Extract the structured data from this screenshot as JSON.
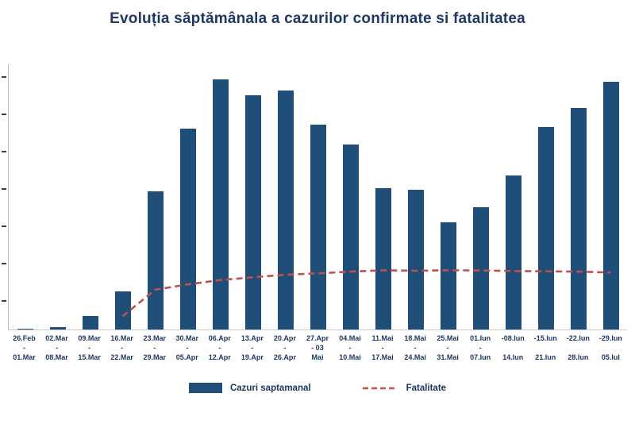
{
  "title": "Evoluția săptămânala a cazurilor confirmate si fatalitatea",
  "legend": {
    "bars": "Cazuri saptamanal",
    "line": "Fatalitate"
  },
  "colors": {
    "bar": "#1F4E79",
    "line": "#C0504D",
    "title": "#1F3864",
    "label": "#1F3864",
    "axis": "#C9C9C9"
  },
  "chart_data": {
    "type": "bar",
    "title": "Evoluția săptămânala a cazurilor confirmate si fatalitatea",
    "categories": [
      "26.Feb - 01.Mar",
      "02.Mar - 08.Mar",
      "09.Mar - 15.Mar",
      "16.Mar - 22.Mar",
      "23.Mar - 29.Mar",
      "30.Mar - 05.Apr",
      "06.Apr - 12.Apr",
      "13.Apr - 19.Apr",
      "20.Apr - 26.Apr",
      "27.Apr - 03.Mai",
      "04.Mai - 10.Mai",
      "11.Mai - 17.Mai",
      "18.Mai - 24.Mai",
      "25.Mai - 31.Mai",
      "01.Iun - 07.Iun",
      "08.Iun - 14.Iun",
      "15.Iun - 21.Iun",
      "22.Iun - 28.Iun",
      "29.Iun - 05.Iul"
    ],
    "categories_display": [
      [
        "26.Feb",
        "-",
        "01.Mar"
      ],
      [
        "02.Mar",
        "-",
        "08.Mar"
      ],
      [
        "09.Mar",
        "-",
        "15.Mar"
      ],
      [
        "16.Mar",
        "-",
        "22.Mar"
      ],
      [
        "23.Mar",
        "-",
        "29.Mar"
      ],
      [
        "30.Mar",
        "-",
        "05.Apr"
      ],
      [
        "06.Apr",
        "-",
        "12.Apr"
      ],
      [
        "13.Apr",
        "-",
        "19.Apr"
      ],
      [
        "20.Apr",
        "-",
        "26.Apr"
      ],
      [
        "27.Apr",
        "- 03",
        "Mai"
      ],
      [
        "04.Mai",
        "-",
        "10.Mai"
      ],
      [
        "11.Mai",
        "-",
        "17.Mai"
      ],
      [
        "18.Mai",
        "-",
        "24.Mai"
      ],
      [
        "25.Mai",
        "-",
        "31.Mai"
      ],
      [
        "01.Iun",
        "-",
        "07.Iun"
      ],
      [
        "-08.Iun",
        "",
        "14.Iun"
      ],
      [
        "-15.Iun",
        "",
        "21.Iun"
      ],
      [
        "-22.Iun",
        "",
        "28.Iun"
      ],
      [
        "-29.Iun",
        "",
        "05.Iul"
      ]
    ],
    "series": [
      {
        "name": "Cazuri saptamanal",
        "type": "bar",
        "values": [
          5,
          30,
          150,
          430,
          1560,
          2270,
          2825,
          2650,
          2700,
          2320,
          2090,
          1600,
          1580,
          1210,
          1380,
          1740,
          2290,
          2510,
          2800
        ]
      },
      {
        "name": "Fatalitate",
        "type": "line-dashed",
        "values": [
          null,
          null,
          null,
          150,
          450,
          510,
          560,
          590,
          620,
          635,
          655,
          670,
          665,
          670,
          668,
          662,
          658,
          655,
          645
        ]
      }
    ],
    "xlabel": "",
    "ylabel": "",
    "ylim": [
      0,
      3000
    ],
    "grid": false,
    "legend_position": "bottom",
    "y_axis": {
      "labels_visible": false,
      "tick_glyph": "-",
      "tick_count": 7
    }
  }
}
